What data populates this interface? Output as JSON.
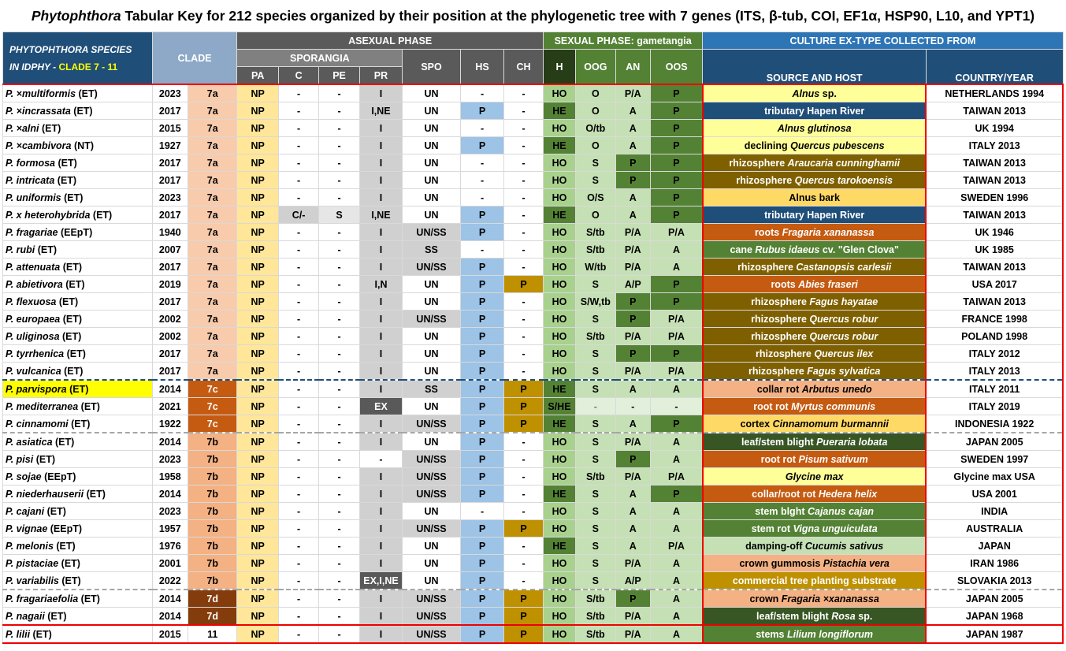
{
  "title": {
    "genus": "Phytophthora",
    "rest": " Tabular Key for 212 species organized by their position at the phylogenetic tree with 7 genes (ITS, β-tub, COI, EF1α, HSP90, L10, and YPT1)"
  },
  "header": {
    "species_line1": "PHYTOPHTHORA  SPECIES",
    "species_line2a": "IN IDPHY -",
    "species_line2b": "CLADE 7 - 11",
    "clade": "CLADE",
    "asexual": "ASEXUAL PHASE",
    "sexual": "SEXUAL PHASE: gametangia",
    "culture": "CULTURE EX-TYPE COLLECTED FROM",
    "sporangia": "SPORANGIA",
    "pa": "PA",
    "c": "C",
    "pe": "PE",
    "pr": "PR",
    "spo": "SPO",
    "hs": "HS",
    "ch": "CH",
    "h": "H",
    "oog": "OOG",
    "an": "AN",
    "oos": "OOS",
    "source": "SOURCE AND HOST",
    "country": "COUNTRY/YEAR"
  },
  "rows": [
    {
      "sp": "P. ×multiformis (ET)",
      "yr": "2023",
      "clade": "7a",
      "pa": "NP",
      "c": "-",
      "pe": "-",
      "pr": "I",
      "spo": "UN",
      "hs": "-",
      "ch": "-",
      "h": "HO",
      "oog": "O",
      "an": "P/A",
      "oos": "P",
      "src": "Alnus sp.",
      "country": "NETHERLANDS 1994"
    },
    {
      "sp": "P. ×incrassata (ET)",
      "yr": "2017",
      "clade": "7a",
      "pa": "NP",
      "c": "-",
      "pe": "-",
      "pr": "I,NE",
      "spo": "UN",
      "hs": "P",
      "ch": "-",
      "h": "HE",
      "oog": "O",
      "an": "A",
      "oos": "P",
      "src": "tributary Hapen River",
      "country": "TAIWAN 2013"
    },
    {
      "sp": "P. ×alni (ET)",
      "yr": "2015",
      "clade": "7a",
      "pa": "NP",
      "c": "-",
      "pe": "-",
      "pr": "I",
      "spo": "UN",
      "hs": "-",
      "ch": "-",
      "h": "HO",
      "oog": "O/tb",
      "an": "A",
      "oos": "P",
      "src": "Alnus glutinosa",
      "country": "UK 1994"
    },
    {
      "sp": "P. ×cambivora (NT)",
      "yr": "1927",
      "clade": "7a",
      "pa": "NP",
      "c": "-",
      "pe": "-",
      "pr": "I",
      "spo": "UN",
      "hs": "P",
      "ch": "-",
      "h": "HE",
      "oog": "O",
      "an": "A",
      "oos": "P",
      "src": "declining Quercus pubescens",
      "country": "ITALY 2013"
    },
    {
      "sp": "P. formosa (ET)",
      "yr": "2017",
      "clade": "7a",
      "pa": "NP",
      "c": "-",
      "pe": "-",
      "pr": "I",
      "spo": "UN",
      "hs": "-",
      "ch": "-",
      "h": "HO",
      "oog": "S",
      "an": "P",
      "oos": "P",
      "src": "rhizosphere Araucaria cunninghamii",
      "country": "TAIWAN 2013"
    },
    {
      "sp": "P. intricata (ET)",
      "yr": "2017",
      "clade": "7a",
      "pa": "NP",
      "c": "-",
      "pe": "-",
      "pr": "I",
      "spo": "UN",
      "hs": "-",
      "ch": "-",
      "h": "HO",
      "oog": "S",
      "an": "P",
      "oos": "P",
      "src": "rhizosphere Quercus tarokoensis",
      "country": "TAIWAN 2013"
    },
    {
      "sp": "P. uniformis (ET)",
      "yr": "2023",
      "clade": "7a",
      "pa": "NP",
      "c": "-",
      "pe": "-",
      "pr": "I",
      "spo": "UN",
      "hs": "-",
      "ch": "-",
      "h": "HO",
      "oog": "O/S",
      "an": "A",
      "oos": "P",
      "src": "Alnus bark",
      "country": "SWEDEN 1996"
    },
    {
      "sp": "P. x heterohybrida (ET)",
      "yr": "2017",
      "clade": "7a",
      "pa": "NP",
      "c": "C/-",
      "pe": "S",
      "pr": "I,NE",
      "spo": "UN",
      "hs": "P",
      "ch": "-",
      "h": "HE",
      "oog": "O",
      "an": "A",
      "oos": "P",
      "src": "tributary Hapen River",
      "country": "TAIWAN 2013"
    },
    {
      "sp": "P. fragariae (EEpT)",
      "yr": "1940",
      "clade": "7a",
      "pa": "NP",
      "c": "-",
      "pe": "-",
      "pr": "I",
      "spo": "UN/SS",
      "hs": "P",
      "ch": "-",
      "h": "HO",
      "oog": "S/tb",
      "an": "P/A",
      "oos": "P/A",
      "src": "roots Fragaria xananassa",
      "country": "UK 1946"
    },
    {
      "sp": "P. rubi (ET)",
      "yr": "2007",
      "clade": "7a",
      "pa": "NP",
      "c": "-",
      "pe": "-",
      "pr": "I",
      "spo": "SS",
      "hs": "-",
      "ch": "-",
      "h": "HO",
      "oog": "S/tb",
      "an": "P/A",
      "oos": "A",
      "src": "cane Rubus idaeus cv. \"Glen Clova\"",
      "country": "UK 1985"
    },
    {
      "sp": "P. attenuata (ET)",
      "yr": "2017",
      "clade": "7a",
      "pa": "NP",
      "c": "-",
      "pe": "-",
      "pr": "I",
      "spo": "UN/SS",
      "hs": "P",
      "ch": "-",
      "h": "HO",
      "oog": "W/tb",
      "an": "P/A",
      "oos": "A",
      "src": "rhizosphere Castanopsis carlesii",
      "country": "TAIWAN 2013"
    },
    {
      "sp": "P. abietivora (ET)",
      "yr": "2019",
      "clade": "7a",
      "pa": "NP",
      "c": "-",
      "pe": "-",
      "pr": "I,N",
      "spo": "UN",
      "hs": "P",
      "ch": "P",
      "h": "HO",
      "oog": "S",
      "an": "A/P",
      "oos": "P",
      "src": "roots Abies fraseri",
      "country": "USA 2017"
    },
    {
      "sp": "P. flexuosa (ET)",
      "yr": "2017",
      "clade": "7a",
      "pa": "NP",
      "c": "-",
      "pe": "-",
      "pr": "I",
      "spo": "UN",
      "hs": "P",
      "ch": "-",
      "h": "HO",
      "oog": "S/W,tb",
      "an": "P",
      "oos": "P",
      "src": "rhizosphere Fagus hayatae",
      "country": "TAIWAN 2013"
    },
    {
      "sp": "P. europaea (ET)",
      "yr": "2002",
      "clade": "7a",
      "pa": "NP",
      "c": "-",
      "pe": "-",
      "pr": "I",
      "spo": "UN/SS",
      "hs": "P",
      "ch": "-",
      "h": "HO",
      "oog": "S",
      "an": "P",
      "oos": "P/A",
      "src": "rhizosphere Quercus robur",
      "country": "FRANCE 1998"
    },
    {
      "sp": "P. uliginosa (ET)",
      "yr": "2002",
      "clade": "7a",
      "pa": "NP",
      "c": "-",
      "pe": "-",
      "pr": "I",
      "spo": "UN",
      "hs": "P",
      "ch": "-",
      "h": "HO",
      "oog": "S/tb",
      "an": "P/A",
      "oos": "P/A",
      "src": "rhizosphere Quercus robur",
      "country": "POLAND 1998"
    },
    {
      "sp": "P. tyrrhenica (ET)",
      "yr": "2017",
      "clade": "7a",
      "pa": "NP",
      "c": "-",
      "pe": "-",
      "pr": "I",
      "spo": "UN",
      "hs": "P",
      "ch": "-",
      "h": "HO",
      "oog": "S",
      "an": "P",
      "oos": "P",
      "src": "rhizosphere Quercus ilex",
      "country": "ITALY 2012"
    },
    {
      "sp": "P. vulcanica (ET)",
      "yr": "2017",
      "clade": "7a",
      "pa": "NP",
      "c": "-",
      "pe": "-",
      "pr": "I",
      "spo": "UN",
      "hs": "P",
      "ch": "-",
      "h": "HO",
      "oog": "S",
      "an": "P/A",
      "oos": "P/A",
      "src": "rhizosphere Fagus sylvatica",
      "country": "ITALY 2013"
    },
    {
      "sp": "P. parvispora (ET)",
      "yr": "2014",
      "clade": "7c",
      "pa": "NP",
      "c": "-",
      "pe": "-",
      "pr": "I",
      "spo": "SS",
      "hs": "P",
      "ch": "P",
      "h": "HE",
      "oog": "S",
      "an": "A",
      "oos": "A",
      "src": "collar rot Arbutus unedo",
      "country": "ITALY 2011"
    },
    {
      "sp": "P. mediterranea (ET)",
      "yr": "2021",
      "clade": "7c",
      "pa": "NP",
      "c": "-",
      "pe": "-",
      "pr": "EX",
      "spo": "UN",
      "hs": "P",
      "ch": "P",
      "h": "S/HE",
      "oog": "-",
      "an": "-",
      "oos": "-",
      "src": "root rot Myrtus communis",
      "country": "ITALY 2019"
    },
    {
      "sp": "P. cinnamomi (ET)",
      "yr": "1922",
      "clade": "7c",
      "pa": "NP",
      "c": "-",
      "pe": "-",
      "pr": "I",
      "spo": "UN/SS",
      "hs": "P",
      "ch": "P",
      "h": "HE",
      "oog": "S",
      "an": "A",
      "oos": "P",
      "src": "cortex Cinnamomum burmannii",
      "country": "INDONESIA 1922"
    },
    {
      "sp": "P. asiatica (ET)",
      "yr": "2014",
      "clade": "7b",
      "pa": "NP",
      "c": "-",
      "pe": "-",
      "pr": "I",
      "spo": "UN",
      "hs": "P",
      "ch": "-",
      "h": "HO",
      "oog": "S",
      "an": "P/A",
      "oos": "A",
      "src": "leaf/stem blight Pueraria lobata",
      "country": "JAPAN 2005"
    },
    {
      "sp": "P. pisi (ET)",
      "yr": "2023",
      "clade": "7b",
      "pa": "NP",
      "c": "-",
      "pe": "-",
      "pr": "-",
      "spo": "UN/SS",
      "hs": "P",
      "ch": "-",
      "h": "HO",
      "oog": "S",
      "an": "P",
      "oos": "A",
      "src": "root rot Pisum sativum",
      "country": "SWEDEN 1997"
    },
    {
      "sp": "P. sojae (EEpT)",
      "yr": "1958",
      "clade": "7b",
      "pa": "NP",
      "c": "-",
      "pe": "-",
      "pr": "I",
      "spo": "UN/SS",
      "hs": "P",
      "ch": "-",
      "h": "HO",
      "oog": "S/tb",
      "an": "P/A",
      "oos": "P/A",
      "src": "Glycine max",
      "country": "Glycine max USA"
    },
    {
      "sp": "P. niederhauserii (ET)",
      "yr": "2014",
      "clade": "7b",
      "pa": "NP",
      "c": "-",
      "pe": "-",
      "pr": "I",
      "spo": "UN/SS",
      "hs": "P",
      "ch": "-",
      "h": "HE",
      "oog": "S",
      "an": "A",
      "oos": "P",
      "src": "collar/root rot Hedera helix",
      "country": "USA 2001"
    },
    {
      "sp": "P. cajani (ET)",
      "yr": "2023",
      "clade": "7b",
      "pa": "NP",
      "c": "-",
      "pe": "-",
      "pr": "I",
      "spo": "UN",
      "hs": "-",
      "ch": "-",
      "h": "HO",
      "oog": "S",
      "an": "A",
      "oos": "A",
      "src": "stem blght Cajanus cajan",
      "country": "INDIA"
    },
    {
      "sp": "P. vignae (EEpT)",
      "yr": "1957",
      "clade": "7b",
      "pa": "NP",
      "c": "-",
      "pe": "-",
      "pr": "I",
      "spo": "UN/SS",
      "hs": "P",
      "ch": "P",
      "h": "HO",
      "oog": "S",
      "an": "A",
      "oos": "A",
      "src": "stem rot Vigna unguiculata",
      "country": "AUSTRALIA"
    },
    {
      "sp": "P. melonis (ET)",
      "yr": "1976",
      "clade": "7b",
      "pa": "NP",
      "c": "-",
      "pe": "-",
      "pr": "I",
      "spo": "UN",
      "hs": "P",
      "ch": "-",
      "h": "HE",
      "oog": "S",
      "an": "A",
      "oos": "P/A",
      "src": "damping-off Cucumis sativus",
      "country": "JAPAN"
    },
    {
      "sp": "P. pistaciae (ET)",
      "yr": "2001",
      "clade": "7b",
      "pa": "NP",
      "c": "-",
      "pe": "-",
      "pr": "I",
      "spo": "UN",
      "hs": "P",
      "ch": "-",
      "h": "HO",
      "oog": "S",
      "an": "P/A",
      "oos": "A",
      "src": "crown gummosis Pistachia vera",
      "country": "IRAN 1986"
    },
    {
      "sp": "P. variabilis (ET)",
      "yr": "2022",
      "clade": "7b",
      "pa": "NP",
      "c": "-",
      "pe": "-",
      "pr": "EX,I,NE",
      "spo": "UN",
      "hs": "P",
      "ch": "-",
      "h": "HO",
      "oog": "S",
      "an": "A/P",
      "oos": "A",
      "src": "commercial tree planting substrate",
      "country": "SLOVAKIA 2013"
    },
    {
      "sp": "P. fragariaefolia (ET)",
      "yr": "2014",
      "clade": "7d",
      "pa": "NP",
      "c": "-",
      "pe": "-",
      "pr": "I",
      "spo": "UN/SS",
      "hs": "P",
      "ch": "P",
      "h": "HO",
      "oog": "S/tb",
      "an": "P",
      "oos": "A",
      "src": "crown Fragaria ×xananassa",
      "country": "JAPAN 2005"
    },
    {
      "sp": "P. nagaii (ET)",
      "yr": "2014",
      "clade": "7d",
      "pa": "NP",
      "c": "-",
      "pe": "-",
      "pr": "I",
      "spo": "UN/SS",
      "hs": "P",
      "ch": "P",
      "h": "HO",
      "oog": "S/tb",
      "an": "P/A",
      "oos": "A",
      "src": "leaf/stem blight Rosa sp.",
      "country": "JAPAN 1968"
    },
    {
      "sp": "P. lilii (ET)",
      "yr": "2015",
      "clade": "11",
      "pa": "NP",
      "c": "-",
      "pe": "-",
      "pr": "I",
      "spo": "UN/SS",
      "hs": "P",
      "ch": "P",
      "h": "HO",
      "oog": "S/tb",
      "an": "P/A",
      "oos": "A",
      "src": "stems Lilium longiflorum",
      "country": "JAPAN 1987"
    }
  ],
  "colors": {
    "header_blue": "#1f4e79",
    "yellow_highlight": "#ffff00",
    "red_border": "#e00000",
    "green_dark": "#548235"
  }
}
